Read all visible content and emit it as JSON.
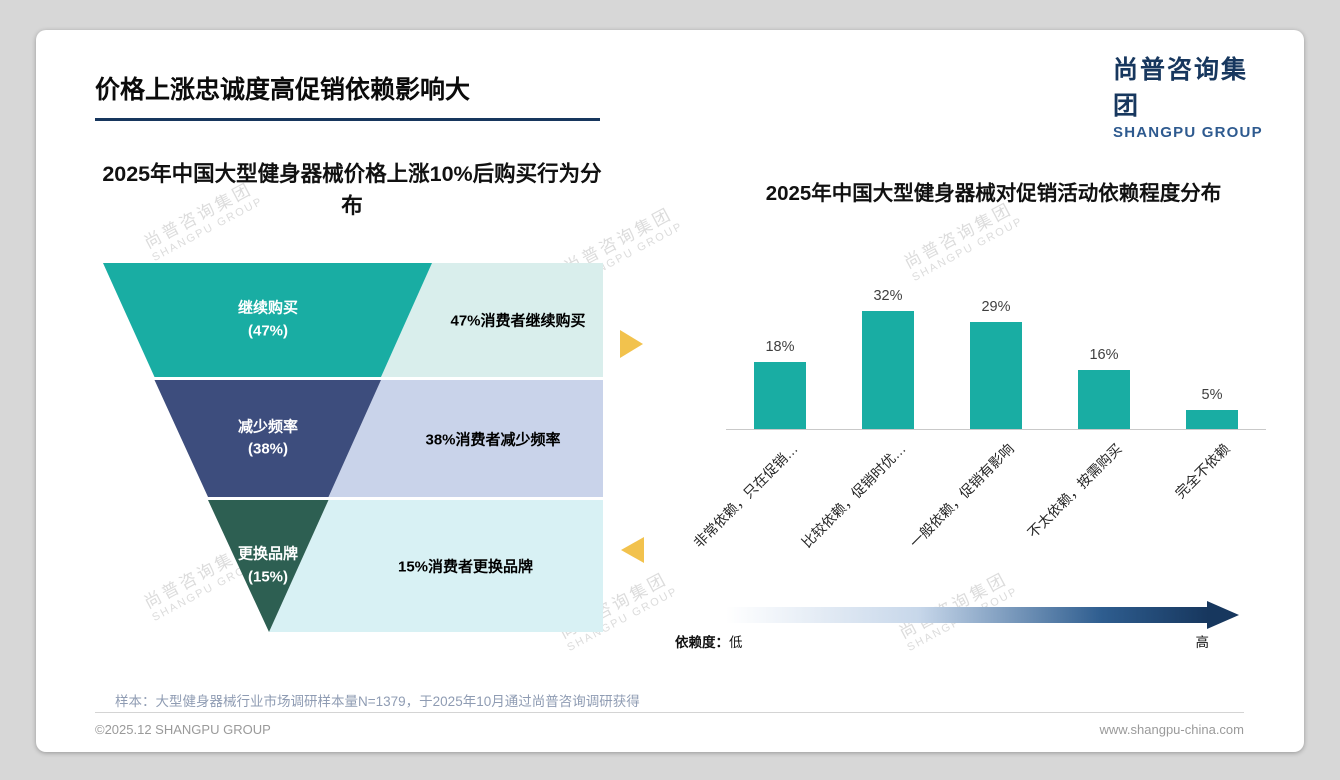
{
  "slide": {
    "title": "价格上涨忠诚度高促销依赖影响大",
    "logo": {
      "cn": "尚普咨询集团",
      "en": "SHANGPU GROUP"
    },
    "watermark": {
      "cn": "尚普咨询集团",
      "en": "SHANGPU GROUP"
    },
    "note": "样本：大型健身器械行业市场调研样本量N=1379，于2025年10月通过尚普咨询调研获得",
    "footer": {
      "left": "©2025.12 SHANGPU GROUP",
      "right": "www.shangpu-china.com"
    }
  },
  "chart_data": [
    {
      "type": "funnel",
      "title": "2025年中国大型健身器械价格上涨10%后购买行为分布",
      "levels": [
        {
          "name": "继续购买",
          "value": 47,
          "value_text": "(47%)",
          "annotation": "47%消费者继续购买",
          "color": "#19ada3",
          "annotation_bg": "#d9eeec"
        },
        {
          "name": "减少频率",
          "value": 38,
          "value_text": "(38%)",
          "annotation": "38%消费者减少频率",
          "color": "#3d4d7d",
          "annotation_bg": "#c9d3ea"
        },
        {
          "name": "更换品牌",
          "value": 15,
          "value_text": "(15%)",
          "annotation": "15%消费者更换品牌",
          "color": "#2d5f52",
          "annotation_bg": "#d8f1f4"
        }
      ]
    },
    {
      "type": "bar",
      "title": "2025年中国大型健身器械对促销活动依赖程度分布",
      "categories": [
        "非常依赖，只在促销…",
        "比较依赖，促销时优…",
        "一般依赖，促销有影响",
        "不太依赖，按需购买",
        "完全不依赖"
      ],
      "values": [
        18,
        32,
        29,
        16,
        5
      ],
      "value_labels": [
        "18%",
        "32%",
        "29%",
        "16%",
        "5%"
      ],
      "bar_color": "#19ada3",
      "ylim": [
        0,
        35
      ],
      "grid": false,
      "legend_position": "none",
      "dependency_axis": {
        "label": "依赖度：",
        "low": "低",
        "high": "高"
      }
    }
  ]
}
